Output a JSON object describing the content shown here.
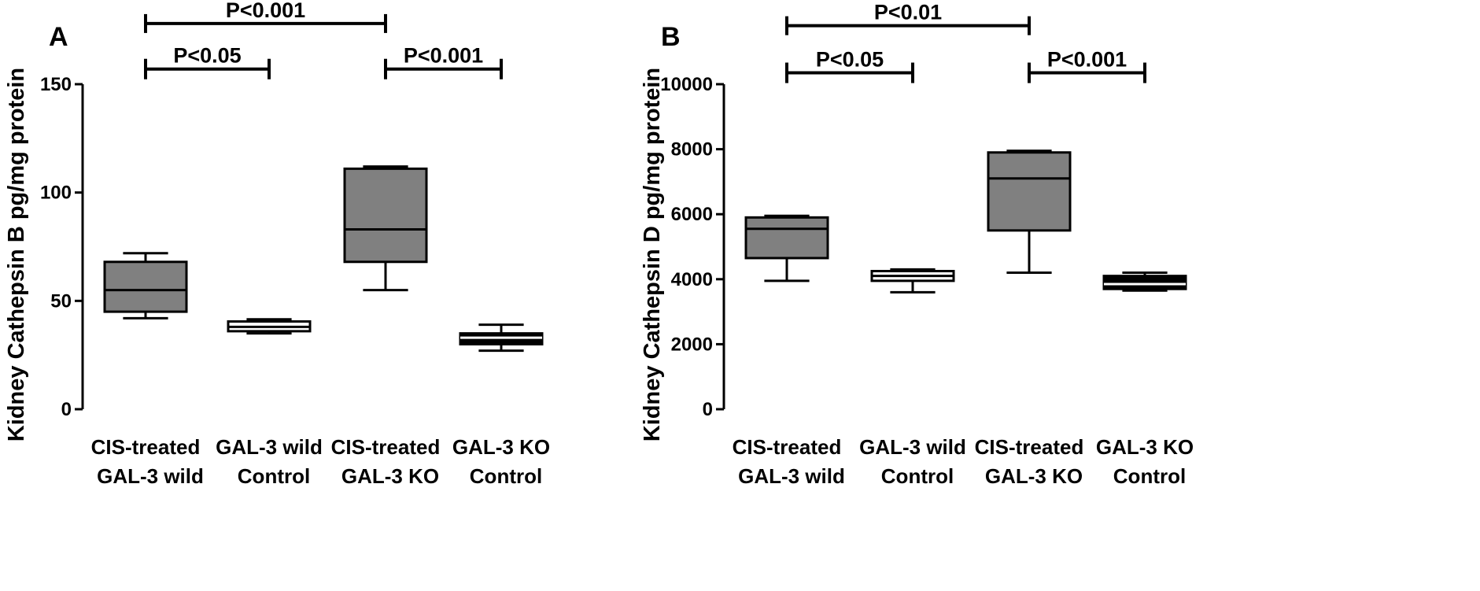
{
  "chart_data": [
    {
      "type": "box",
      "panel_label": "A",
      "ylabel": "Kidney Cathepsin B pg/mg protein",
      "ylim": [
        0,
        150
      ],
      "yticks": [
        0,
        50,
        100,
        150
      ],
      "categories": [
        [
          "CIS-treated",
          "GAL-3 wild"
        ],
        [
          "GAL-3 wild",
          "Control"
        ],
        [
          "CIS-treated",
          "GAL-3 KO"
        ],
        [
          "GAL-3 KO",
          "Control"
        ]
      ],
      "boxes": [
        {
          "min": 42,
          "q1": 45,
          "median": 55,
          "q3": 68,
          "max": 72,
          "color": "#808080"
        },
        {
          "min": 35,
          "q1": 36,
          "median": 38,
          "q3": 40.5,
          "max": 41.5,
          "color": "#ffffff"
        },
        {
          "min": 55,
          "q1": 68,
          "median": 83,
          "q3": 111,
          "max": 112,
          "color": "#808080"
        },
        {
          "min": 27,
          "q1": 30,
          "median": 33,
          "q3": 35,
          "max": 39,
          "color": "#000000"
        }
      ],
      "significance": [
        {
          "from": 0,
          "to": 2,
          "label": "P<0.001",
          "y": 178,
          "tick_down": true
        },
        {
          "from": 0,
          "to": 1,
          "label": "P<0.05",
          "y": 157,
          "tick_down": false
        },
        {
          "from": 2,
          "to": 3,
          "label": "P<0.001",
          "y": 157,
          "tick_down": false
        }
      ]
    },
    {
      "type": "box",
      "panel_label": "B",
      "ylabel": "Kidney Cathepsin D pg/mg protein",
      "ylim": [
        0,
        10000
      ],
      "yticks": [
        0,
        2000,
        4000,
        6000,
        8000,
        10000
      ],
      "categories": [
        [
          "CIS-treated",
          "GAL-3 wild"
        ],
        [
          "GAL-3 wild",
          "Control"
        ],
        [
          "CIS-treated",
          "GAL-3 KO"
        ],
        [
          "GAL-3 KO",
          "Control"
        ]
      ],
      "boxes": [
        {
          "min": 3950,
          "q1": 4650,
          "median": 5550,
          "q3": 5900,
          "max": 5950,
          "color": "#808080"
        },
        {
          "min": 3600,
          "q1": 3950,
          "median": 4100,
          "q3": 4250,
          "max": 4300,
          "color": "#ffffff"
        },
        {
          "min": 4200,
          "q1": 5500,
          "median": 7100,
          "q3": 7900,
          "max": 7950,
          "color": "#808080"
        },
        {
          "min": 3650,
          "q1": 3700,
          "median": 3850,
          "q3": 4100,
          "max": 4200,
          "color": "#000000"
        }
      ],
      "significance": [
        {
          "from": 0,
          "to": 2,
          "label": "P<0.01",
          "y": 11800,
          "tick_down": true
        },
        {
          "from": 0,
          "to": 1,
          "label": "P<0.05",
          "y": 10350,
          "tick_down": false
        },
        {
          "from": 2,
          "to": 3,
          "label": "P<0.001",
          "y": 10350,
          "tick_down": false
        }
      ]
    }
  ]
}
